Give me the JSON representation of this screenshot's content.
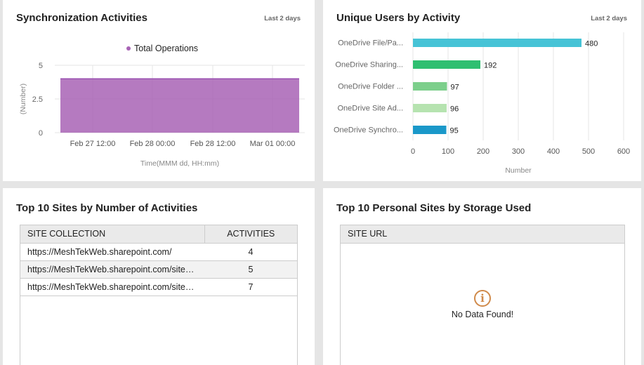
{
  "sync": {
    "title": "Synchronization Activities",
    "range": "Last 2 days",
    "chart_data": {
      "type": "area",
      "legend": [
        "Total Operations"
      ],
      "legend_position": "top-center",
      "ylabel": "(Number)",
      "xlabel": "Time(MMM dd, HH:mm)",
      "yticks": [
        "0",
        "2.5",
        "5"
      ],
      "ylim": [
        0,
        5
      ],
      "xticks": [
        "Feb 27 12:00",
        "Feb 28 00:00",
        "Feb 28 12:00",
        "Mar 01 00:00"
      ],
      "series": [
        {
          "name": "Total Operations",
          "color": "#a863b5",
          "x": [
            "Feb 27 08:00",
            "Mar 01 08:00"
          ],
          "values": [
            4,
            4
          ]
        }
      ],
      "grid": true
    }
  },
  "users": {
    "title": "Unique Users by Activity",
    "range": "Last 2 days",
    "chart_data": {
      "type": "bar",
      "orientation": "horizontal",
      "categories": [
        "OneDrive File/Pa...",
        "OneDrive Sharing...",
        "OneDrive Folder ...",
        "OneDrive Site Ad...",
        "OneDrive Synchro..."
      ],
      "values": [
        480,
        192,
        97,
        96,
        95
      ],
      "value_labels": [
        "480",
        "192",
        "97",
        "96",
        "95"
      ],
      "colors": [
        "#46c3d6",
        "#2fbf71",
        "#7ccf8b",
        "#b6e3b0",
        "#1a98c9"
      ],
      "xticks": [
        "0",
        "100",
        "200",
        "300",
        "400",
        "500",
        "600"
      ],
      "xlim": [
        0,
        600
      ],
      "xlabel": "Number",
      "grid": true
    }
  },
  "sites": {
    "title": "Top 10 Sites by Number of Activities",
    "columns": [
      "SITE COLLECTION",
      "ACTIVITIES"
    ],
    "rows": [
      {
        "url": "https://MeshTekWeb.sharepoint.com/",
        "count": "4"
      },
      {
        "url": "https://MeshTekWeb.sharepoint.com/sites/...",
        "count": "5"
      },
      {
        "url": "https://MeshTekWeb.sharepoint.com/sites/...",
        "count": "7"
      }
    ]
  },
  "personal": {
    "title": "Top 10 Personal Sites by Storage Used",
    "columns": [
      "SITE URL"
    ],
    "info_icon": "info-circle-icon",
    "empty_message": "No Data Found!"
  }
}
